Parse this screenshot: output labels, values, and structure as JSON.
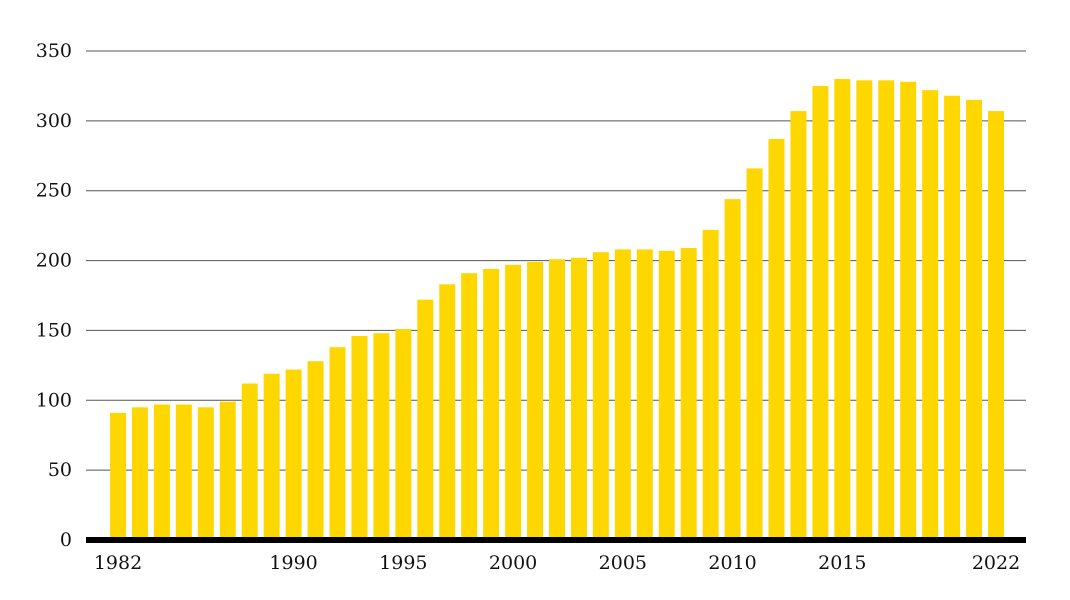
{
  "chart_data": {
    "type": "bar",
    "title": "",
    "xlabel": "",
    "ylabel": "",
    "ylim": [
      0,
      350
    ],
    "yticks": [
      0,
      50,
      100,
      150,
      200,
      250,
      300,
      350
    ],
    "ytick_labels": [
      "0",
      "50",
      "100",
      "150",
      "200",
      "250",
      "300",
      "350"
    ],
    "xtick_labels": [
      {
        "category": "1982",
        "label": "1982"
      },
      {
        "category": "1990",
        "label": "1990"
      },
      {
        "category": "1995",
        "label": "1995"
      },
      {
        "category": "2000",
        "label": "2000"
      },
      {
        "category": "2005",
        "label": "2005"
      },
      {
        "category": "2010",
        "label": "2010"
      },
      {
        "category": "2015",
        "label": "2015"
      },
      {
        "category": "2022",
        "label": "2022"
      }
    ],
    "grid": true,
    "bar_color": "#FFD700",
    "baseline_color": "#000000",
    "grid_color": "#555555",
    "categories": [
      "1982",
      "1983",
      "1984",
      "1985",
      "1986",
      "1987",
      "1988",
      "1989",
      "1990",
      "1991",
      "1992",
      "1993",
      "1994",
      "1995",
      "1996",
      "1997",
      "1998",
      "1999",
      "2000",
      "2001",
      "2002",
      "2003",
      "2004",
      "2005",
      "2006",
      "2007",
      "2008",
      "2009",
      "2010",
      "2011",
      "2012",
      "2013",
      "2014",
      "2015",
      "2016",
      "2017",
      "2018",
      "2019",
      "2020",
      "2021",
      "2022"
    ],
    "values": [
      91,
      95,
      97,
      97,
      95,
      99,
      112,
      119,
      122,
      128,
      138,
      146,
      148,
      151,
      172,
      183,
      191,
      194,
      197,
      199,
      201,
      202,
      206,
      208,
      208,
      207,
      209,
      222,
      244,
      266,
      287,
      307,
      325,
      330,
      329,
      329,
      328,
      322,
      318,
      315,
      307
    ]
  }
}
